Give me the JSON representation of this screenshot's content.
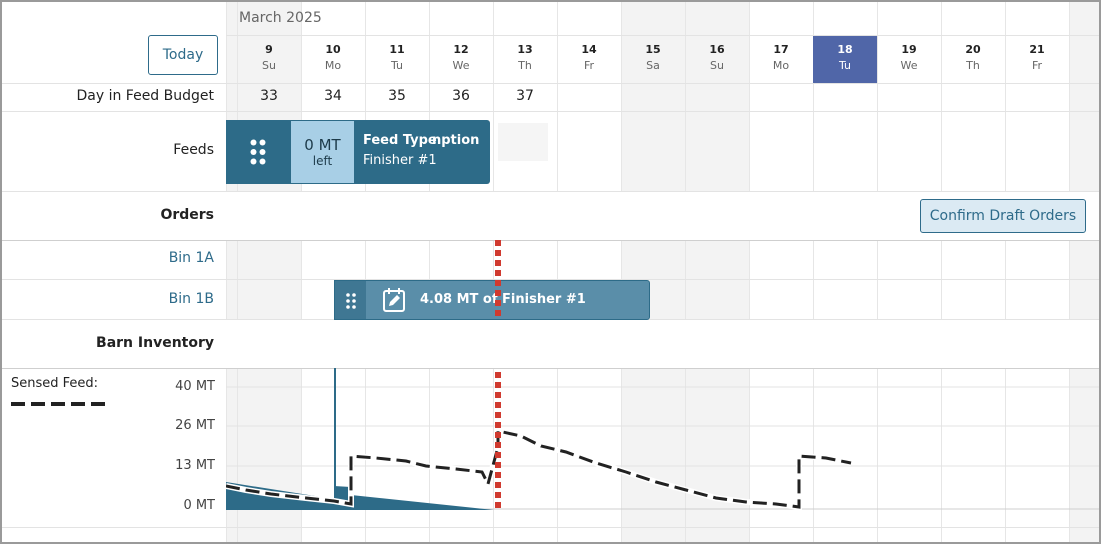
{
  "header": {
    "month": "March 2025",
    "today_label": "Today",
    "days": [
      {
        "num": "9",
        "dow": "Su",
        "weekend": true
      },
      {
        "num": "10",
        "dow": "Mo",
        "weekend": false
      },
      {
        "num": "11",
        "dow": "Tu",
        "weekend": false
      },
      {
        "num": "12",
        "dow": "We",
        "weekend": false
      },
      {
        "num": "13",
        "dow": "Th",
        "weekend": false
      },
      {
        "num": "14",
        "dow": "Fr",
        "weekend": false
      },
      {
        "num": "15",
        "dow": "Sa",
        "weekend": true
      },
      {
        "num": "16",
        "dow": "Su",
        "weekend": true
      },
      {
        "num": "17",
        "dow": "Mo",
        "weekend": false
      },
      {
        "num": "18",
        "dow": "Tu",
        "weekend": false,
        "selected": true
      },
      {
        "num": "19",
        "dow": "We",
        "weekend": false
      },
      {
        "num": "20",
        "dow": "Th",
        "weekend": false
      },
      {
        "num": "21",
        "dow": "Fr",
        "weekend": false
      }
    ]
  },
  "rows": {
    "budget_label": "Day in Feed Budget",
    "budget_values": [
      "33",
      "34",
      "35",
      "36",
      "37"
    ],
    "feeds_label": "Feeds",
    "orders_label": "Orders",
    "bin_1a": "Bin 1A",
    "bin_1b": "Bin 1B",
    "barn_label": "Barn Inventory"
  },
  "feed_card": {
    "amount": "0 MT",
    "amount_unit": "left",
    "type_label": "Feed Type",
    "type_label_clipped": "nption",
    "name": "Finisher #1"
  },
  "orders": {
    "confirm_label": "Confirm Draft Orders",
    "order_text": "4.08 MT of Finisher #1"
  },
  "inventory": {
    "sensed_label": "Sensed Feed:",
    "y_ticks": [
      "40 MT",
      "26 MT",
      "13 MT",
      "0 MT"
    ]
  },
  "colors": {
    "accent": "#2d6b88",
    "selected_day": "#5066a8",
    "now_line": "#d03a2f",
    "sensed": "#222222"
  }
}
